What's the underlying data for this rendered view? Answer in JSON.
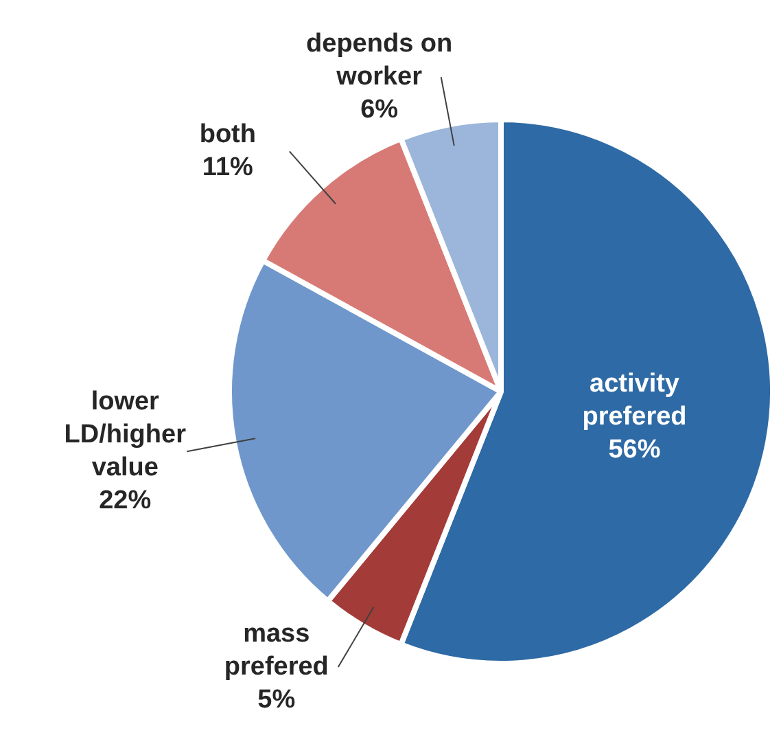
{
  "chart_data": {
    "type": "pie",
    "categories": [
      "activity prefered",
      "mass prefered",
      "lower LD/higher value",
      "both",
      "depends on worker"
    ],
    "values": [
      56,
      5,
      22,
      11,
      6
    ],
    "value_labels": [
      "56%",
      "5%",
      "22%",
      "11%",
      "6%"
    ],
    "colors": [
      "#2e6aa5",
      "#a33b38",
      "#6f97cc",
      "#d77a76",
      "#9bb6da"
    ],
    "legend": false
  }
}
